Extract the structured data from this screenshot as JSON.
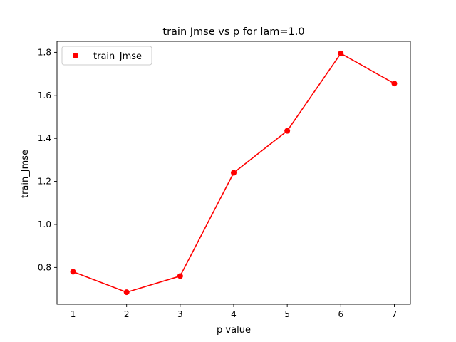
{
  "chart_data": {
    "type": "line",
    "title": "train Jmse vs p for lam=1.0",
    "xlabel": "p value",
    "ylabel": "train_Jmse",
    "x": [
      1,
      2,
      3,
      4,
      5,
      6,
      7
    ],
    "series": [
      {
        "name": "train_Jmse",
        "values": [
          0.78,
          0.685,
          0.76,
          1.24,
          1.435,
          1.795,
          1.655
        ],
        "color": "#ff0000",
        "marker": "circle"
      }
    ],
    "xticks": [
      "1",
      "2",
      "3",
      "4",
      "5",
      "6",
      "7"
    ],
    "yticks": [
      "0.8",
      "1.0",
      "1.2",
      "1.4",
      "1.6",
      "1.8"
    ],
    "xlim": [
      0.7,
      7.3
    ],
    "ylim": [
      0.629,
      1.851
    ],
    "grid": false,
    "legend_position": "top-left"
  }
}
